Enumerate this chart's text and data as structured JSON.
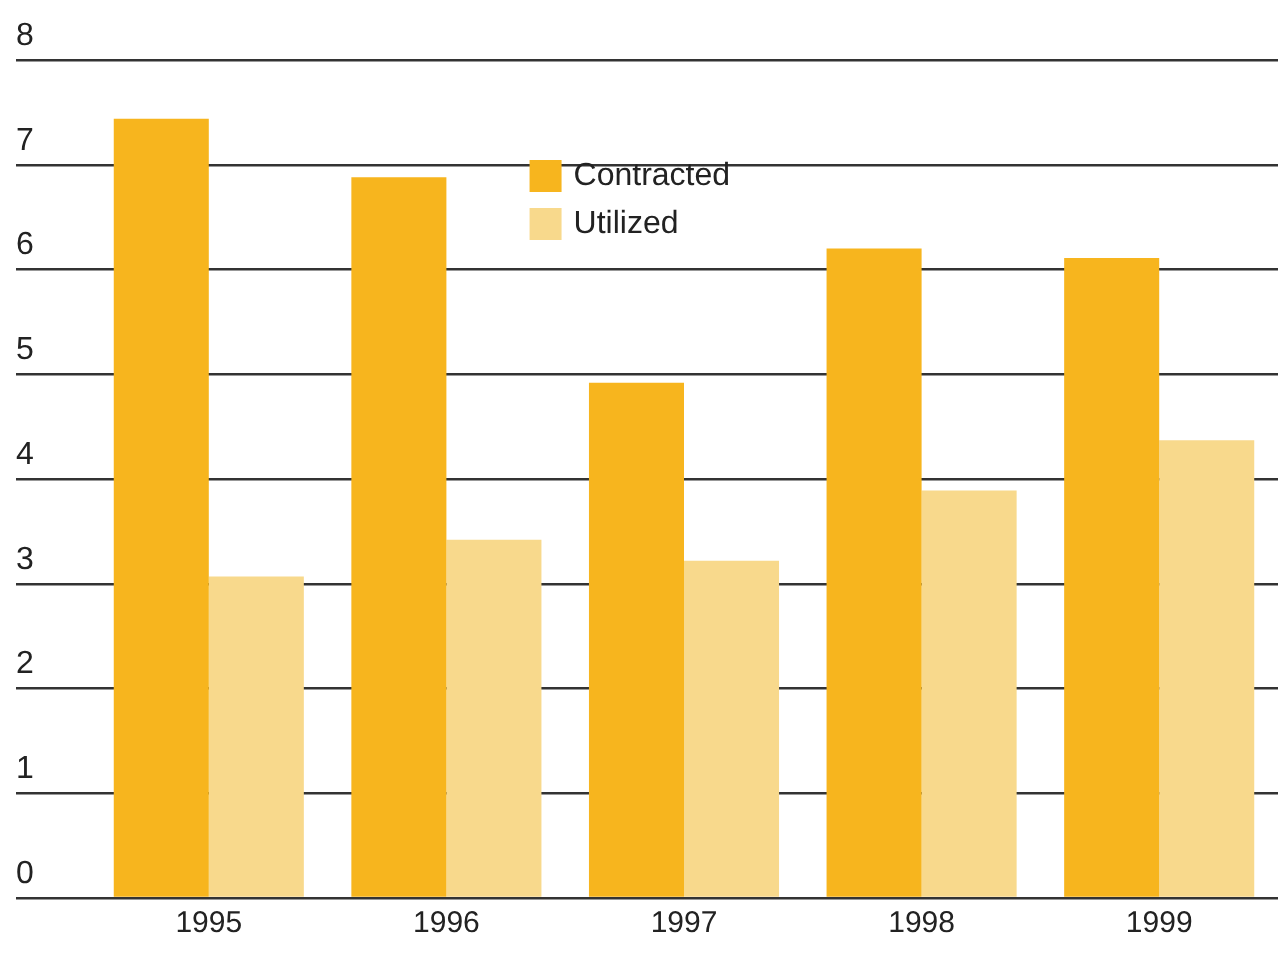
{
  "chart_data": {
    "type": "bar",
    "categories": [
      "1995",
      "1996",
      "1997",
      "1998",
      "1999"
    ],
    "series": [
      {
        "name": "Contracted",
        "color": "#f7b51e",
        "values": [
          7.44,
          6.88,
          4.92,
          6.2,
          6.11
        ]
      },
      {
        "name": "Utilized",
        "color": "#f8d98c",
        "values": [
          3.07,
          3.42,
          3.22,
          3.89,
          4.37
        ]
      }
    ],
    "ylim": [
      0,
      8
    ],
    "yticks": [
      0,
      1,
      2,
      3,
      4,
      5,
      6,
      7,
      8
    ],
    "grid": "y",
    "legend": "top"
  }
}
